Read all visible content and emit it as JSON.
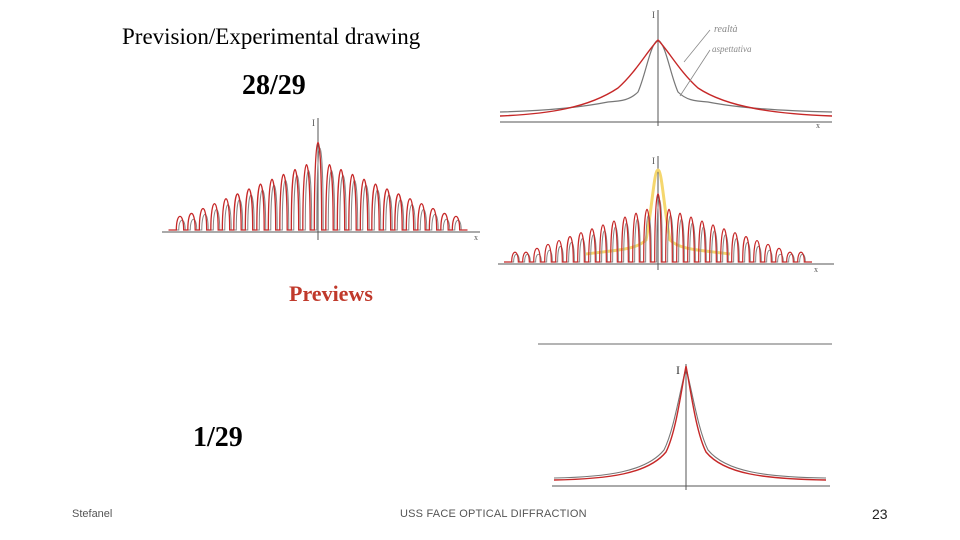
{
  "slide": {
    "title": "Prevision/Experimental drawing",
    "score_top": "28/29",
    "previews_label": "Previews",
    "score_bottom": "1/29"
  },
  "footer": {
    "author": "Stefanel",
    "course": "USS FACE OPTICAL DIFFRACTION",
    "page_number": "23"
  },
  "drawings": {
    "top_right": {
      "y_axis_label": "I",
      "x_axis_label": "x",
      "note_1": "realtà",
      "note_2": "aspettativa"
    },
    "mid_left": {
      "y_axis_label": "I",
      "x_axis_label": "x"
    },
    "mid_right": {
      "y_axis_label": "I",
      "x_axis_label": "x"
    },
    "bottom_right": {
      "y_axis_label": "I"
    }
  },
  "colors": {
    "prevision_curve": "#c62828",
    "experimental_curve": "#777777",
    "highlight_curve": "#f5d76e",
    "previews_text": "#c0392b"
  }
}
